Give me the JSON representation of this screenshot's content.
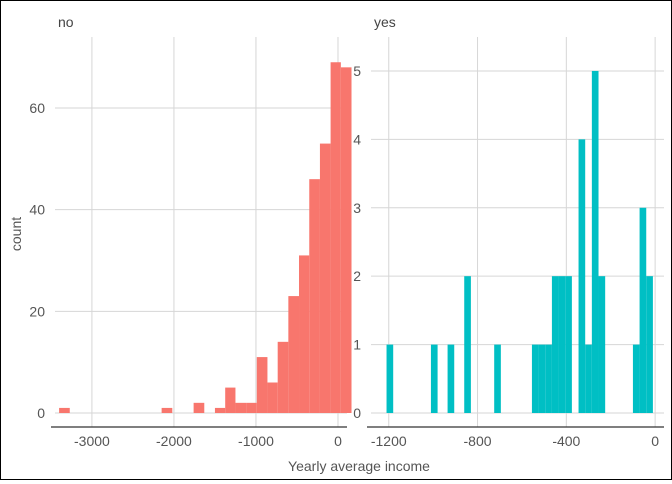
{
  "xlabel": "Yearly average income",
  "ylabel": "count",
  "chart_data": [
    {
      "type": "bar",
      "title": "no",
      "color": "#F8766D",
      "xlabel": "Yearly average income",
      "ylabel": "count",
      "xlim": [
        -3450,
        110
      ],
      "ylim": [
        0,
        72
      ],
      "xticks": [
        -3000,
        -2000,
        -1000,
        0
      ],
      "xtick_labels": [
        "-3000",
        "-2000",
        "-1000",
        "0"
      ],
      "yticks": [
        0,
        20,
        40,
        60
      ],
      "ytick_labels": [
        "0",
        "20",
        "40",
        "60"
      ],
      "bins": [
        {
          "x0": -3400,
          "x1": -3270,
          "count": 1
        },
        {
          "x0": -2150,
          "x1": -2020,
          "count": 1
        },
        {
          "x0": -1760,
          "x1": -1630,
          "count": 2
        },
        {
          "x0": -1500,
          "x1": -1375,
          "count": 1
        },
        {
          "x0": -1375,
          "x1": -1250,
          "count": 5
        },
        {
          "x0": -1250,
          "x1": -1120,
          "count": 2
        },
        {
          "x0": -1120,
          "x1": -990,
          "count": 2
        },
        {
          "x0": -990,
          "x1": -860,
          "count": 11
        },
        {
          "x0": -860,
          "x1": -735,
          "count": 6
        },
        {
          "x0": -735,
          "x1": -605,
          "count": 14
        },
        {
          "x0": -605,
          "x1": -475,
          "count": 23
        },
        {
          "x0": -475,
          "x1": -350,
          "count": 31
        },
        {
          "x0": -350,
          "x1": -220,
          "count": 46
        },
        {
          "x0": -220,
          "x1": -90,
          "count": 53
        },
        {
          "x0": -90,
          "x1": 35,
          "count": 69
        },
        {
          "x0": 35,
          "x1": 165,
          "count": 68
        }
      ]
    },
    {
      "type": "bar",
      "title": "yes",
      "color": "#00BFC4",
      "xlabel": "Yearly average income",
      "ylabel": "count",
      "xlim": [
        -1280,
        40
      ],
      "ylim": [
        0,
        5.35
      ],
      "xticks": [
        -1200,
        -800,
        -400,
        0
      ],
      "xtick_labels": [
        "-1200",
        "-800",
        "-400",
        "0"
      ],
      "yticks": [
        0,
        1,
        2,
        3,
        4,
        5
      ],
      "ytick_labels": [
        "0",
        "1",
        "2",
        "3",
        "4",
        "5"
      ],
      "bins": [
        {
          "x0": -1210,
          "x1": -1180,
          "count": 1
        },
        {
          "x0": -1010,
          "x1": -980,
          "count": 1
        },
        {
          "x0": -935,
          "x1": -905,
          "count": 1
        },
        {
          "x0": -860,
          "x1": -830,
          "count": 2
        },
        {
          "x0": -725,
          "x1": -695,
          "count": 1
        },
        {
          "x0": -555,
          "x1": -525,
          "count": 1
        },
        {
          "x0": -525,
          "x1": -495,
          "count": 1
        },
        {
          "x0": -495,
          "x1": -465,
          "count": 1
        },
        {
          "x0": -465,
          "x1": -435,
          "count": 2
        },
        {
          "x0": -435,
          "x1": -405,
          "count": 2
        },
        {
          "x0": -405,
          "x1": -375,
          "count": 2
        },
        {
          "x0": -345,
          "x1": -315,
          "count": 4
        },
        {
          "x0": -315,
          "x1": -285,
          "count": 1
        },
        {
          "x0": -285,
          "x1": -255,
          "count": 5
        },
        {
          "x0": -255,
          "x1": -225,
          "count": 2
        },
        {
          "x0": -100,
          "x1": -70,
          "count": 1
        },
        {
          "x0": -70,
          "x1": -40,
          "count": 3
        },
        {
          "x0": -40,
          "x1": -10,
          "count": 2
        }
      ]
    }
  ]
}
